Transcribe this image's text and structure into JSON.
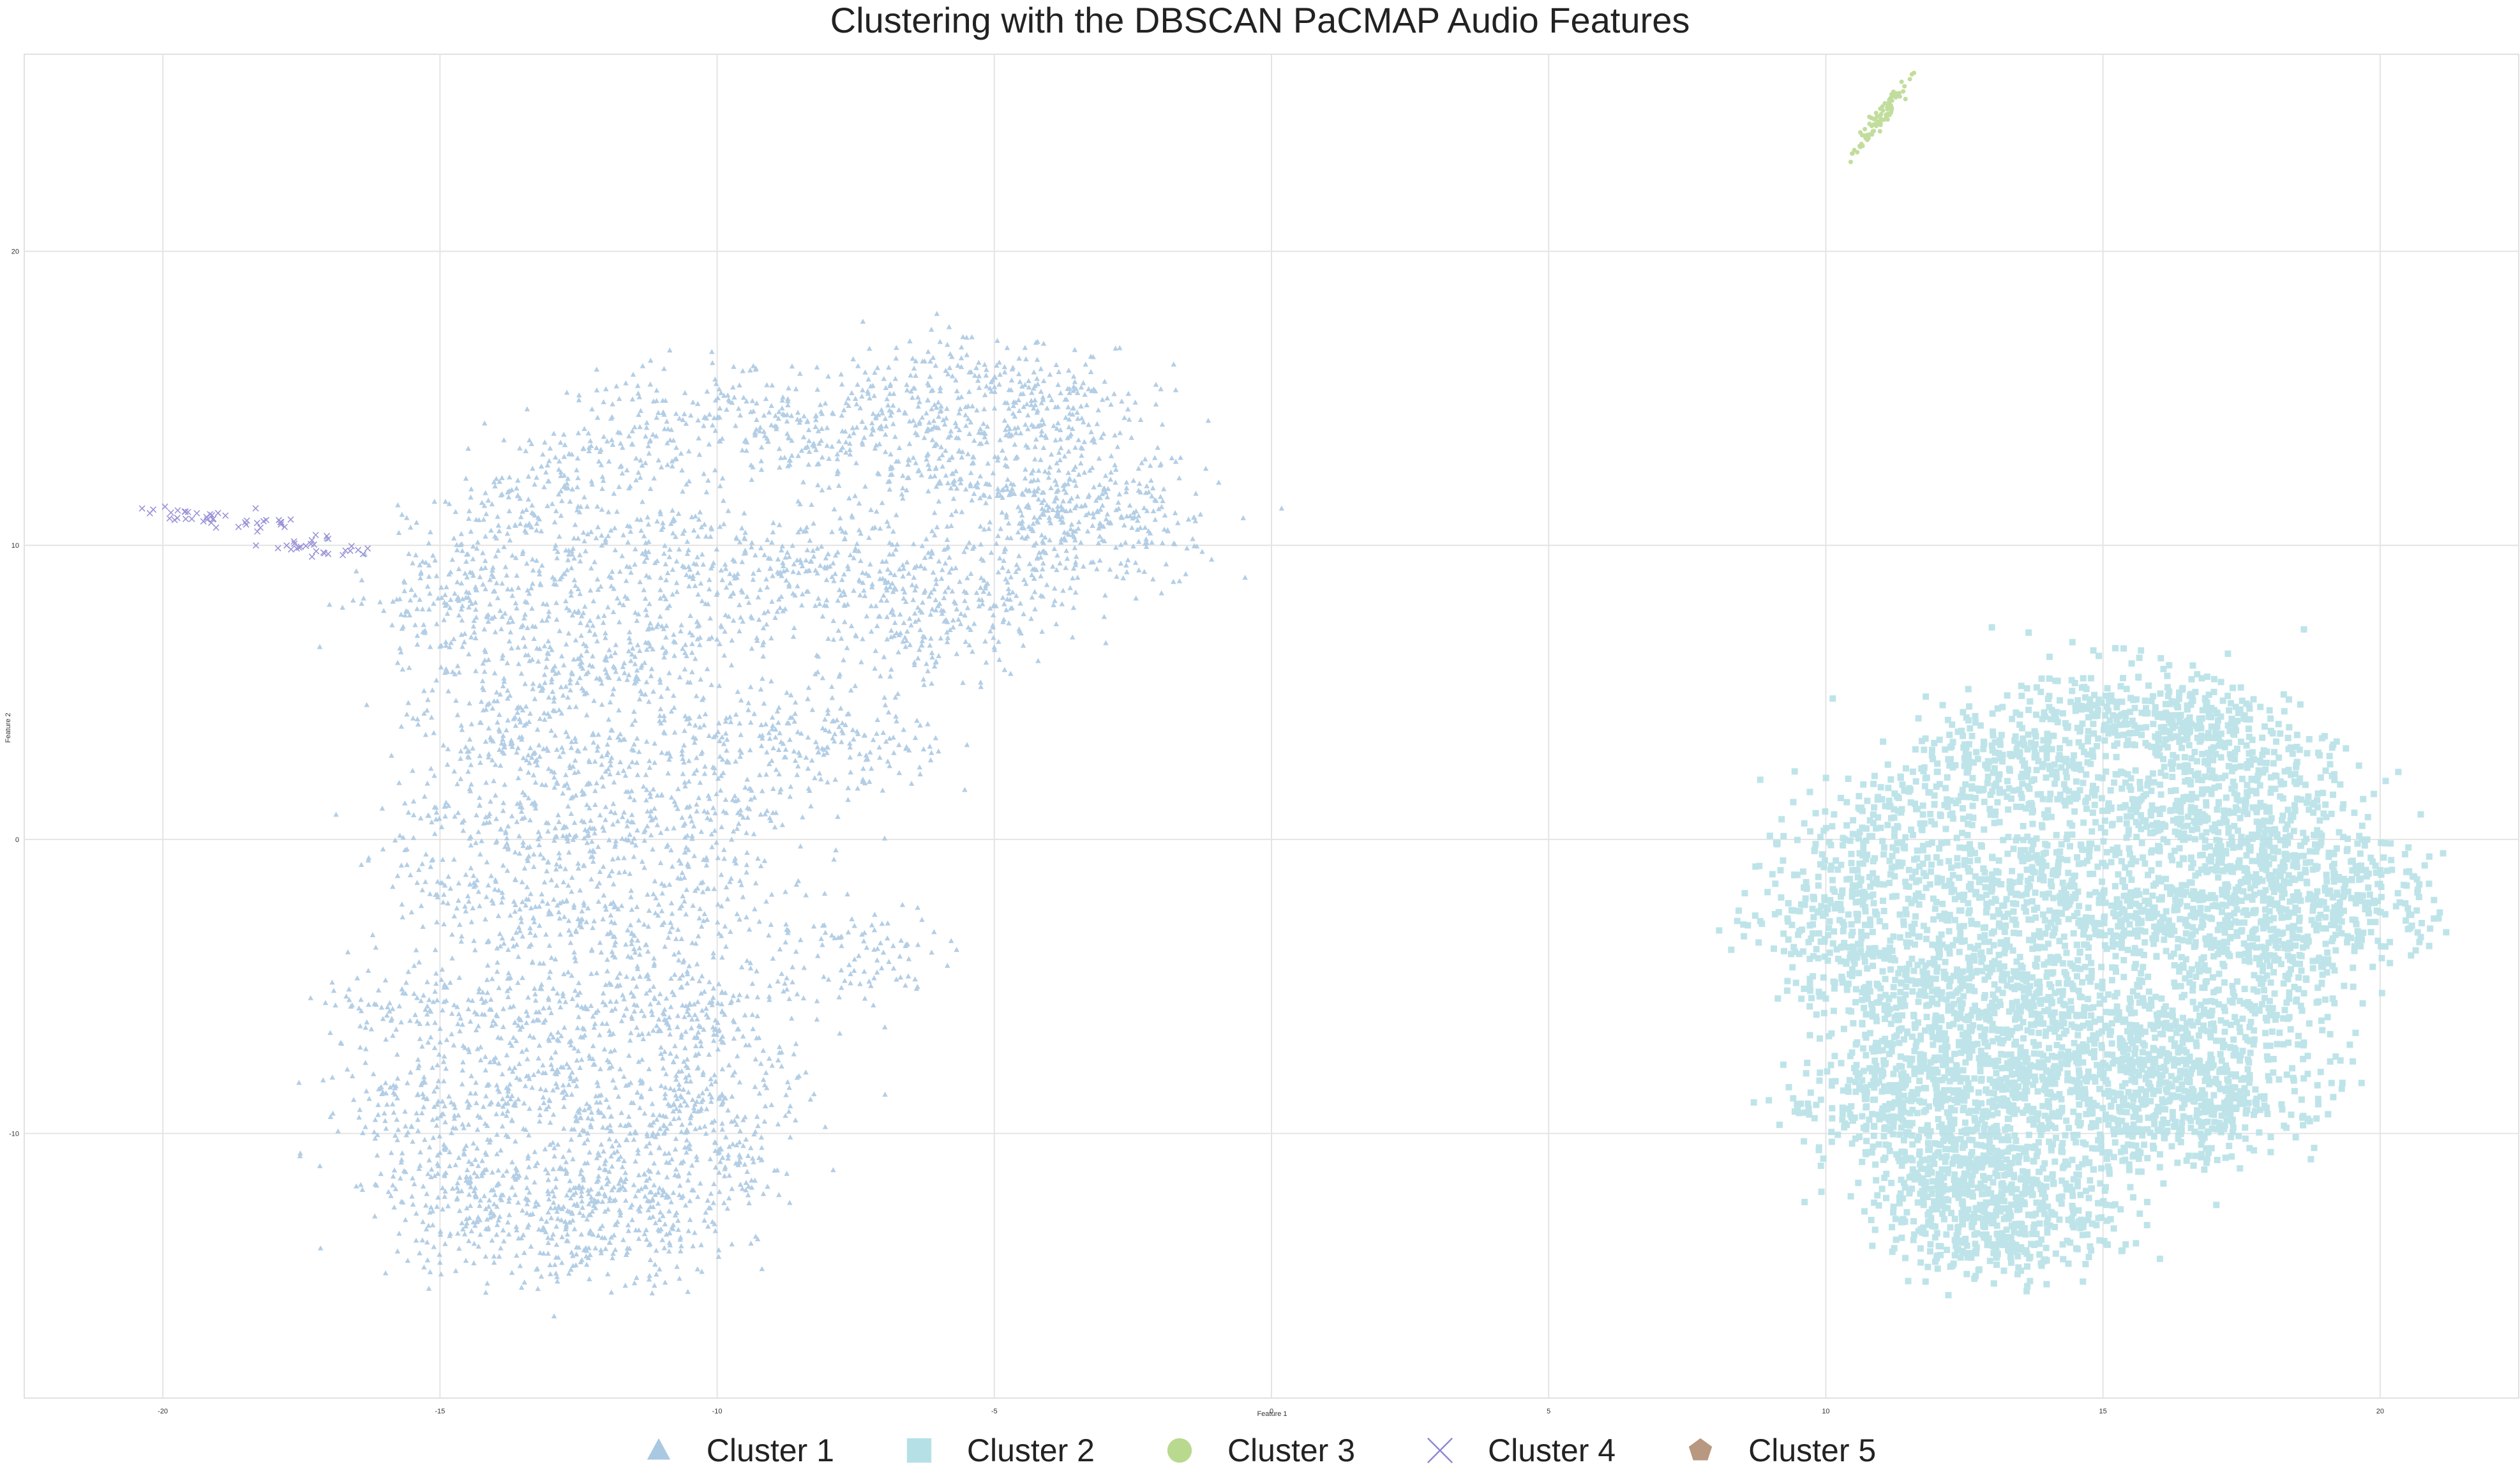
{
  "chart_data": {
    "type": "scatter",
    "title": "Clustering with the DBSCAN PaCMAP Audio Features",
    "xlabel": "Feature 1",
    "ylabel": "Feature 2",
    "xlim": [
      -22.5,
      22.5
    ],
    "ylim": [
      -19,
      26.7
    ],
    "xticks": [
      -20,
      -15,
      -10,
      -5,
      0,
      5,
      10,
      15,
      20
    ],
    "yticks": [
      -10,
      0,
      10,
      20
    ],
    "grid": true,
    "legend_position": "bottom-center",
    "series": [
      {
        "name": "Cluster 1",
        "marker": "triangle",
        "color": "#a9c8e2",
        "region_centers": [
          [
            -5.5,
            15.5
          ],
          [
            -4.5,
            15
          ],
          [
            -3.5,
            14.5
          ],
          [
            -7,
            14.5
          ],
          [
            -3,
            11.5
          ],
          [
            -2.5,
            10.5
          ],
          [
            -4,
            11
          ],
          [
            -6,
            13
          ],
          [
            -5,
            12
          ],
          [
            -8,
            13.5
          ],
          [
            -9.5,
            14.5
          ],
          [
            -11,
            14
          ],
          [
            -12.5,
            12.5
          ],
          [
            -13.5,
            11
          ],
          [
            -14.5,
            9
          ],
          [
            -15,
            8
          ],
          [
            -12.5,
            8.5
          ],
          [
            -13.5,
            6
          ],
          [
            -12,
            6
          ],
          [
            -10.5,
            7
          ],
          [
            -9.5,
            9
          ],
          [
            -8,
            9
          ],
          [
            -7,
            9.5
          ],
          [
            -11,
            10
          ],
          [
            -14,
            4
          ],
          [
            -13,
            3
          ],
          [
            -11,
            3.5
          ],
          [
            -9,
            3.5
          ],
          [
            -7.5,
            3
          ],
          [
            -6.5,
            6.5
          ],
          [
            -5.5,
            7.5
          ],
          [
            -4.5,
            9.5
          ],
          [
            -14.5,
            1
          ],
          [
            -13,
            0
          ],
          [
            -11.5,
            0.5
          ],
          [
            -10,
            1
          ],
          [
            -14.5,
            -2
          ],
          [
            -13,
            -3
          ],
          [
            -11.5,
            -3
          ],
          [
            -10,
            -2
          ],
          [
            -15.5,
            -5.5
          ],
          [
            -14,
            -6
          ],
          [
            -12.5,
            -6
          ],
          [
            -11,
            -6.5
          ],
          [
            -10,
            -6
          ],
          [
            -15.5,
            -9
          ],
          [
            -14,
            -8.5
          ],
          [
            -12.5,
            -9
          ],
          [
            -11,
            -9
          ],
          [
            -10,
            -9
          ],
          [
            -15,
            -11.5
          ],
          [
            -13.5,
            -12
          ],
          [
            -12,
            -12
          ],
          [
            -11,
            -11.5
          ],
          [
            -10,
            -11
          ],
          [
            -14.5,
            -13
          ],
          [
            -13,
            -13.5
          ],
          [
            -11.5,
            -13.5
          ],
          [
            -7.5,
            -4
          ]
        ]
      },
      {
        "name": "Cluster 2",
        "marker": "square",
        "color": "#b5e1e6",
        "region_centers": [
          [
            15,
            4.5
          ],
          [
            16,
            4
          ],
          [
            17,
            3.5
          ],
          [
            18,
            2
          ],
          [
            19,
            -1
          ],
          [
            19.5,
            -2.5
          ],
          [
            18,
            -1
          ],
          [
            17,
            0
          ],
          [
            16,
            1
          ],
          [
            14,
            2
          ],
          [
            13,
            3
          ],
          [
            11.5,
            1
          ],
          [
            10.5,
            -1
          ],
          [
            10,
            -3
          ],
          [
            11,
            -5
          ],
          [
            12,
            -4
          ],
          [
            13,
            -2
          ],
          [
            14,
            -1
          ],
          [
            15,
            -3
          ],
          [
            16,
            -2
          ],
          [
            17,
            -3
          ],
          [
            18,
            -4
          ],
          [
            17.5,
            -6
          ],
          [
            16.5,
            -7
          ],
          [
            15.5,
            -8
          ],
          [
            14.5,
            -6
          ],
          [
            13.5,
            -5
          ],
          [
            12.5,
            -6.5
          ],
          [
            11.5,
            -7.5
          ],
          [
            11,
            -9
          ],
          [
            12,
            -10
          ],
          [
            13,
            -11
          ],
          [
            14,
            -12.5
          ],
          [
            13.5,
            -13.5
          ],
          [
            12.5,
            -13
          ],
          [
            15,
            -10
          ],
          [
            16.5,
            -9.5
          ],
          [
            17.5,
            -8.5
          ],
          [
            14,
            -8
          ],
          [
            13,
            -8.5
          ],
          [
            12,
            -12
          ]
        ]
      },
      {
        "name": "Cluster 3",
        "marker": "circle",
        "color": "#b9d98f",
        "region_centers": [
          [
            10.9,
            24.2
          ],
          [
            11.1,
            25
          ]
        ]
      },
      {
        "name": "Cluster 4",
        "marker": "x",
        "color": "#8c84d2",
        "region_centers": [
          [
            -19.8,
            11.1
          ],
          [
            -19,
            10.9
          ],
          [
            -18.3,
            10.8
          ],
          [
            -17.5,
            10.1
          ],
          [
            -16.8,
            9.8
          ]
        ]
      },
      {
        "name": "Cluster 5",
        "marker": "pentagon",
        "color": "#b89880",
        "region_centers": []
      }
    ]
  }
}
